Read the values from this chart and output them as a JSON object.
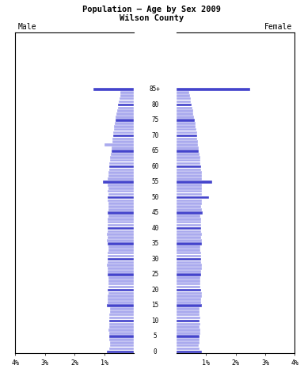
{
  "title_line1": "Population — Age by Sex 2009",
  "title_line2": "Wilson County",
  "male_label": "Male",
  "female_label": "Female",
  "background_color": "#ffffff",
  "bar_color_main": "#4444cc",
  "bar_color_light": "#aaaaee",
  "xlim": 4.0,
  "ages": [
    0,
    1,
    2,
    3,
    4,
    5,
    6,
    7,
    8,
    9,
    10,
    11,
    12,
    13,
    14,
    15,
    16,
    17,
    18,
    19,
    20,
    21,
    22,
    23,
    24,
    25,
    26,
    27,
    28,
    29,
    30,
    31,
    32,
    33,
    34,
    35,
    36,
    37,
    38,
    39,
    40,
    41,
    42,
    43,
    44,
    45,
    46,
    47,
    48,
    49,
    50,
    51,
    52,
    53,
    54,
    55,
    56,
    57,
    58,
    59,
    60,
    61,
    62,
    63,
    64,
    65,
    66,
    67,
    68,
    69,
    70,
    71,
    72,
    73,
    74,
    75,
    76,
    77,
    78,
    79,
    80,
    81,
    82,
    83,
    84,
    "85+"
  ],
  "male_pct": [
    0.9,
    0.82,
    0.8,
    0.81,
    0.82,
    0.83,
    0.84,
    0.85,
    0.84,
    0.83,
    0.84,
    0.83,
    0.82,
    0.81,
    0.8,
    0.91,
    0.89,
    0.88,
    0.87,
    0.86,
    0.87,
    0.86,
    0.85,
    0.85,
    0.86,
    0.87,
    0.88,
    0.89,
    0.9,
    0.89,
    0.88,
    0.87,
    0.87,
    0.86,
    0.85,
    0.89,
    0.9,
    0.89,
    0.9,
    0.89,
    0.88,
    0.87,
    0.88,
    0.87,
    0.86,
    0.87,
    0.86,
    0.85,
    0.86,
    0.87,
    0.87,
    0.86,
    0.87,
    0.86,
    0.87,
    1.05,
    0.87,
    0.86,
    0.85,
    0.84,
    0.83,
    0.82,
    0.81,
    0.8,
    0.78,
    0.76,
    0.75,
    0.99,
    0.73,
    0.72,
    0.7,
    0.69,
    0.68,
    0.66,
    0.64,
    0.62,
    0.6,
    0.58,
    0.56,
    0.54,
    0.52,
    0.5,
    0.48,
    0.46,
    0.44,
    1.35
  ],
  "female_pct": [
    0.85,
    0.78,
    0.76,
    0.78,
    0.79,
    0.78,
    0.8,
    0.81,
    0.79,
    0.8,
    0.78,
    0.8,
    0.79,
    0.78,
    0.77,
    0.86,
    0.84,
    0.83,
    0.85,
    0.86,
    0.84,
    0.82,
    0.81,
    0.81,
    0.82,
    0.83,
    0.84,
    0.85,
    0.86,
    0.84,
    0.84,
    0.83,
    0.84,
    0.82,
    0.81,
    0.85,
    0.86,
    0.84,
    0.85,
    0.84,
    0.84,
    0.83,
    0.84,
    0.83,
    0.82,
    0.9,
    0.85,
    0.84,
    0.85,
    0.86,
    1.1,
    0.86,
    0.87,
    0.86,
    0.87,
    1.2,
    0.87,
    0.86,
    0.85,
    0.84,
    0.83,
    0.82,
    0.81,
    0.8,
    0.78,
    0.76,
    0.75,
    0.73,
    0.72,
    0.71,
    0.7,
    0.69,
    0.68,
    0.66,
    0.64,
    0.62,
    0.6,
    0.58,
    0.56,
    0.54,
    0.52,
    0.5,
    0.48,
    0.46,
    0.44,
    2.5
  ]
}
